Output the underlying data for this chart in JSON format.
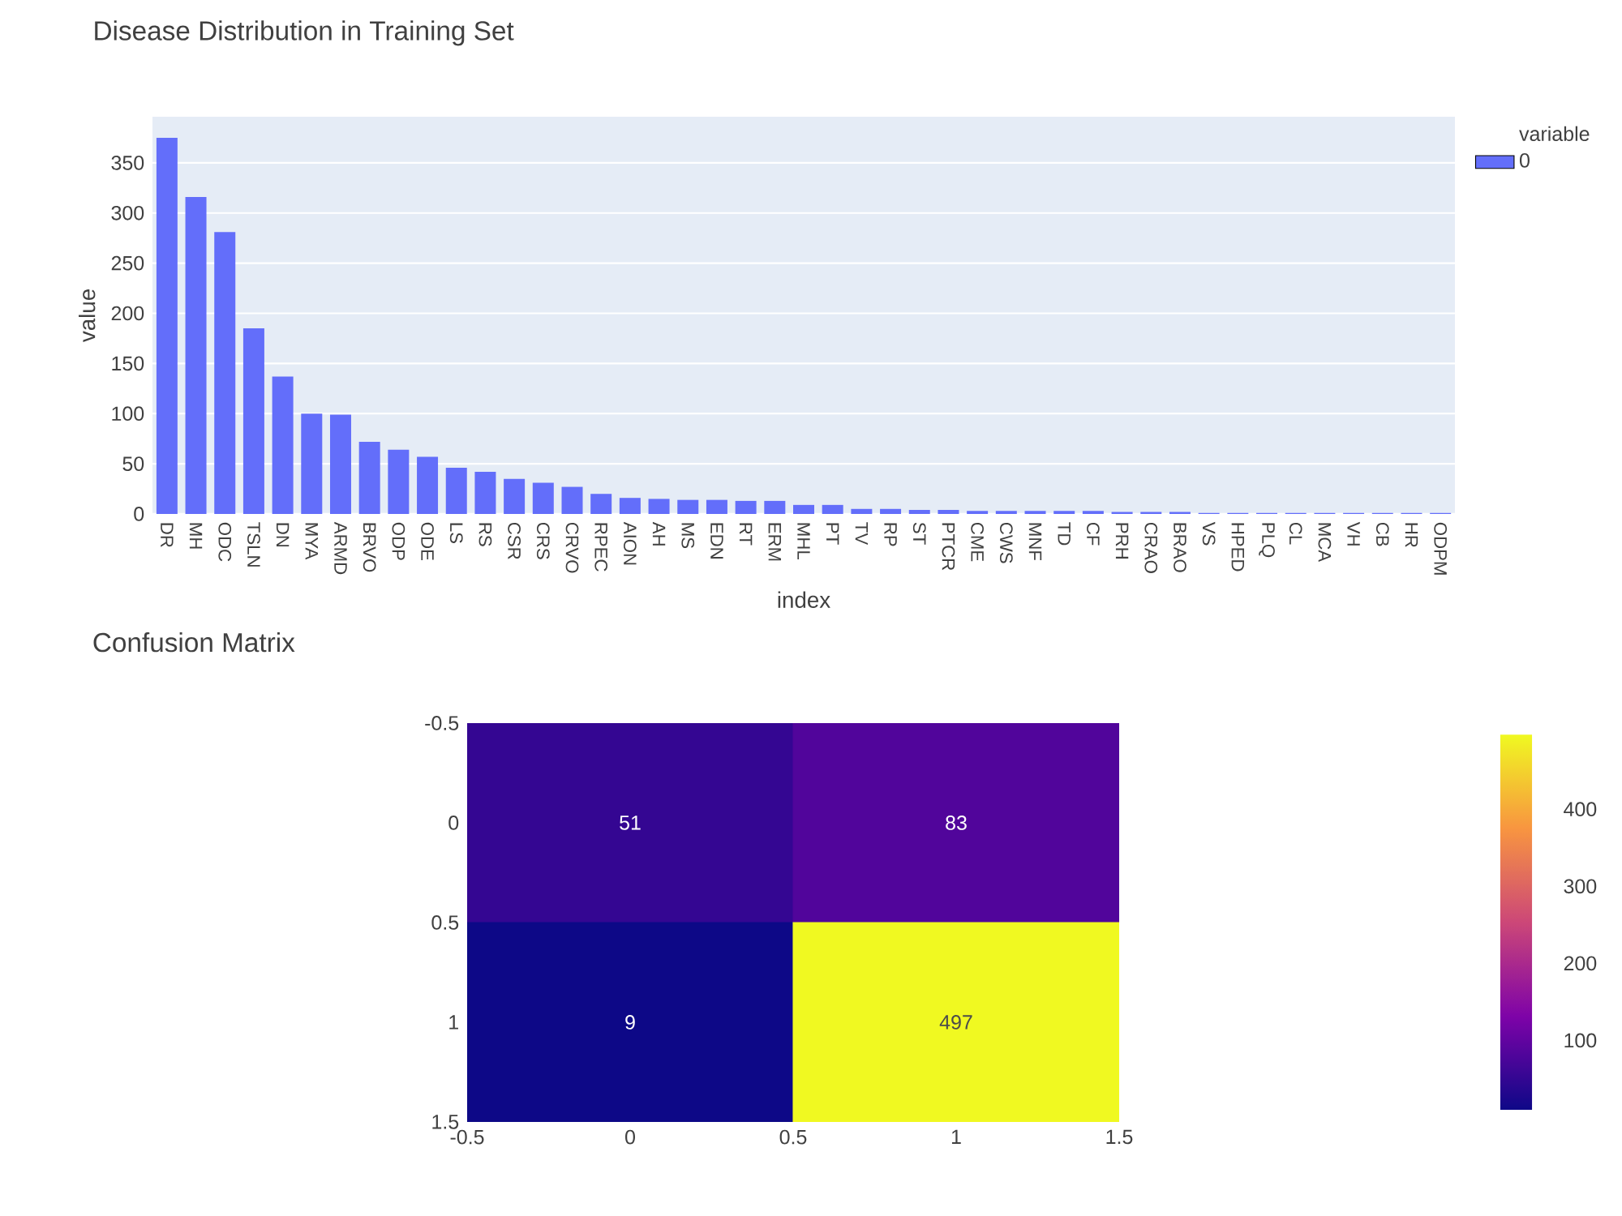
{
  "chart_data": [
    {
      "type": "bar",
      "title": "Disease Distribution in Training Set",
      "xlabel": "index",
      "ylabel": "value",
      "legend_title": "variable",
      "categories": [
        "DR",
        "MH",
        "ODC",
        "TSLN",
        "DN",
        "MYA",
        "ARMD",
        "BRVO",
        "ODP",
        "ODE",
        "LS",
        "RS",
        "CSR",
        "CRS",
        "CRVO",
        "RPEC",
        "AION",
        "AH",
        "MS",
        "EDN",
        "RT",
        "ERM",
        "MHL",
        "PT",
        "TV",
        "RP",
        "ST",
        "PTCR",
        "CME",
        "CWS",
        "MNF",
        "TD",
        "CF",
        "PRH",
        "CRAO",
        "BRAO",
        "VS",
        "HPED",
        "PLQ",
        "CL",
        "MCA",
        "VH",
        "CB",
        "HR",
        "ODPM"
      ],
      "series": [
        {
          "name": "0",
          "color": "#636efa",
          "values": [
            375,
            316,
            281,
            185,
            137,
            100,
            99,
            72,
            64,
            57,
            46,
            42,
            35,
            31,
            27,
            20,
            16,
            15,
            14,
            14,
            13,
            13,
            9,
            9,
            5,
            5,
            4,
            4,
            3,
            3,
            3,
            3,
            3,
            2,
            2,
            2,
            1,
            1,
            1,
            1,
            1,
            1,
            1,
            1,
            1
          ]
        }
      ],
      "ylim": [
        0,
        396
      ],
      "yticks": [
        0,
        50,
        100,
        150,
        200,
        250,
        300,
        350
      ],
      "grid": "y",
      "legend": "top right"
    },
    {
      "type": "heatmap",
      "title": "Confusion Matrix",
      "cells": [
        [
          51,
          83
        ],
        [
          9,
          497
        ]
      ],
      "data_labels": true,
      "xlim": [
        -0.5,
        1.5
      ],
      "xticks": [
        -0.5,
        0,
        0.5,
        1,
        1.5
      ],
      "ylim": [
        1.5,
        -0.5
      ],
      "yticks": [
        -0.5,
        0,
        0.5,
        1,
        1.5
      ],
      "clim": [
        9,
        497
      ],
      "cticks": [
        100,
        200,
        300,
        400
      ]
    }
  ]
}
